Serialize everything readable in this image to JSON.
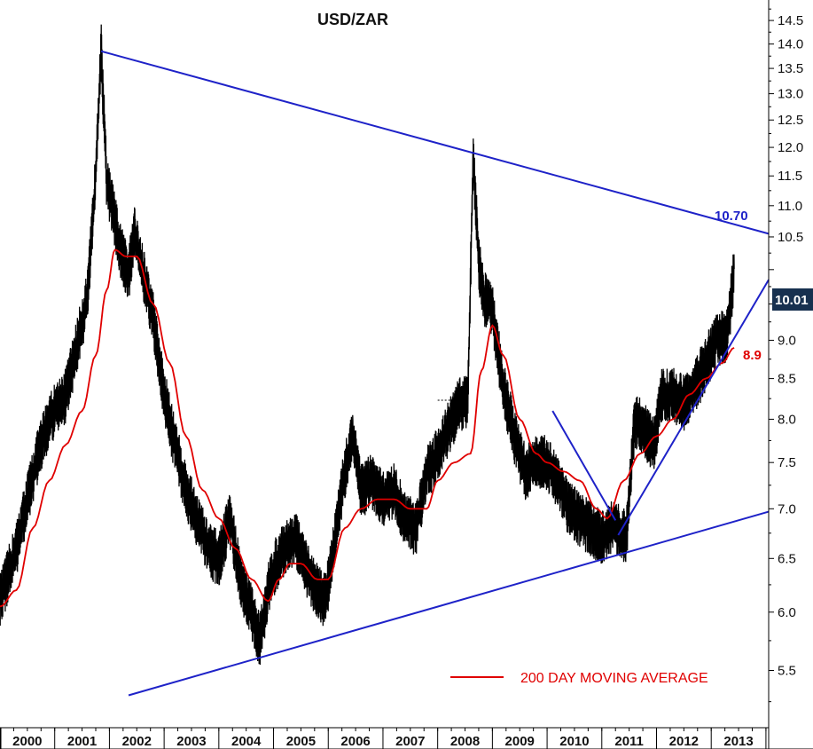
{
  "chart_data": {
    "type": "line",
    "title": "USD/ZAR",
    "xlabel": "",
    "ylabel": "",
    "y_scale": "log",
    "ylim": [
      5.05,
      14.95
    ],
    "xlim": [
      2000.0,
      2014.05
    ],
    "x_ticks": [
      "2000",
      "2001",
      "2002",
      "2003",
      "2004",
      "2005",
      "2006",
      "2007",
      "2008",
      "2009",
      "2010",
      "2011",
      "2012",
      "2013"
    ],
    "y_ticks": [
      "5.5",
      "6.0",
      "6.5",
      "7.0",
      "7.5",
      "8.0",
      "8.5",
      "9.0",
      "9.5",
      "10.0",
      "10.5",
      "11.0",
      "11.5",
      "12.0",
      "12.5",
      "13.0",
      "13.5",
      "14.0",
      "14.5"
    ],
    "grid": false,
    "legend_position": "bottom-right",
    "series": [
      {
        "name": "",
        "color": "#000000",
        "x": [
          2000.0,
          2000.3,
          2000.5,
          2000.7,
          2000.9,
          2001.0,
          2001.2,
          2001.4,
          2001.6,
          2001.75,
          2001.85,
          2001.95,
          2002.05,
          2002.2,
          2002.35,
          2002.45,
          2002.6,
          2002.8,
          2003.0,
          2003.2,
          2003.4,
          2003.6,
          2003.8,
          2004.0,
          2004.2,
          2004.4,
          2004.6,
          2004.75,
          2004.9,
          2005.0,
          2005.2,
          2005.4,
          2005.6,
          2005.8,
          2005.95,
          2006.1,
          2006.3,
          2006.45,
          2006.6,
          2006.8,
          2007.0,
          2007.2,
          2007.4,
          2007.6,
          2007.8,
          2008.0,
          2008.2,
          2008.4,
          2008.55,
          2008.65,
          2008.75,
          2008.85,
          2009.0,
          2009.2,
          2009.4,
          2009.6,
          2009.8,
          2010.0,
          2010.2,
          2010.4,
          2010.6,
          2010.8,
          2011.0,
          2011.15,
          2011.35,
          2011.45,
          2011.6,
          2011.75,
          2011.95,
          2012.1,
          2012.3,
          2012.5,
          2012.7,
          2012.9,
          2013.1,
          2013.3,
          2013.42
        ],
        "y": [
          6.1,
          6.6,
          7.1,
          7.6,
          8.0,
          8.1,
          8.3,
          8.9,
          9.6,
          11.5,
          13.85,
          11.4,
          11.0,
          10.3,
          9.9,
          10.6,
          10.0,
          9.3,
          8.3,
          7.7,
          7.2,
          6.9,
          6.6,
          6.5,
          6.9,
          6.3,
          6.0,
          5.75,
          6.2,
          6.4,
          6.6,
          6.7,
          6.4,
          6.2,
          6.1,
          6.6,
          7.4,
          7.8,
          7.2,
          7.3,
          7.1,
          7.2,
          6.9,
          6.8,
          7.4,
          7.6,
          7.9,
          8.2,
          8.2,
          11.9,
          10.1,
          9.6,
          9.4,
          8.4,
          7.8,
          7.4,
          7.5,
          7.5,
          7.3,
          7.0,
          6.9,
          6.8,
          6.7,
          6.8,
          6.8,
          6.7,
          8.0,
          7.9,
          7.7,
          8.3,
          8.3,
          8.2,
          8.4,
          8.7,
          9.0,
          9.1,
          10.01
        ]
      },
      {
        "name": "200 DAY MOVING AVERAGE",
        "color": "#e00000",
        "x": [
          2000.0,
          2000.3,
          2000.6,
          2000.9,
          2001.2,
          2001.5,
          2001.75,
          2001.95,
          2002.1,
          2002.3,
          2002.5,
          2002.8,
          2003.1,
          2003.4,
          2003.7,
          2004.0,
          2004.3,
          2004.6,
          2004.9,
          2005.1,
          2005.3,
          2005.5,
          2005.8,
          2006.0,
          2006.3,
          2006.6,
          2006.9,
          2007.2,
          2007.5,
          2007.8,
          2008.0,
          2008.3,
          2008.6,
          2008.8,
          2009.0,
          2009.2,
          2009.5,
          2009.8,
          2010.0,
          2010.3,
          2010.6,
          2010.9,
          2011.1,
          2011.4,
          2011.7,
          2012.0,
          2012.3,
          2012.6,
          2012.9,
          2013.2,
          2013.42
        ],
        "y": [
          6.05,
          6.2,
          6.8,
          7.3,
          7.7,
          8.1,
          8.8,
          9.7,
          10.3,
          10.2,
          10.2,
          9.5,
          8.7,
          7.8,
          7.2,
          6.9,
          6.6,
          6.3,
          6.1,
          6.3,
          6.45,
          6.45,
          6.3,
          6.3,
          6.8,
          7.0,
          7.1,
          7.1,
          7.0,
          7.0,
          7.3,
          7.5,
          7.6,
          8.6,
          9.2,
          8.8,
          8.0,
          7.6,
          7.5,
          7.4,
          7.3,
          7.0,
          6.9,
          7.3,
          7.6,
          7.8,
          8.0,
          8.3,
          8.5,
          8.7,
          8.9
        ]
      }
    ],
    "trendlines": [
      {
        "name": "upper-resistance",
        "color": "#1e22c8",
        "x": [
          2001.85,
          2014.05
        ],
        "y": [
          13.85,
          10.55
        ]
      },
      {
        "name": "lower-support",
        "color": "#1e22c8",
        "x": [
          2002.35,
          2014.05
        ],
        "y": [
          5.3,
          6.97
        ]
      },
      {
        "name": "steep-support",
        "color": "#1e22c8",
        "x": [
          2011.3,
          2014.05
        ],
        "y": [
          6.73,
          9.85
        ]
      },
      {
        "name": "falling-line",
        "color": "#1e22c8",
        "x": [
          2010.1,
          2011.25
        ],
        "y": [
          8.1,
          6.88
        ]
      }
    ],
    "reference_lines": [
      {
        "name": "dashed-level",
        "color": "#000000",
        "x": [
          2008.0,
          2008.55
        ],
        "y": [
          8.23,
          8.23
        ]
      }
    ],
    "annotations": [
      {
        "text": "10.70",
        "x": 2013.1,
        "y": 10.7,
        "color": "#1e22c8"
      },
      {
        "text": "8.9",
        "x": 2013.55,
        "y": 8.9,
        "color": "#e00000"
      }
    ],
    "last_value": {
      "text": "10.01",
      "value": 10.01
    }
  }
}
